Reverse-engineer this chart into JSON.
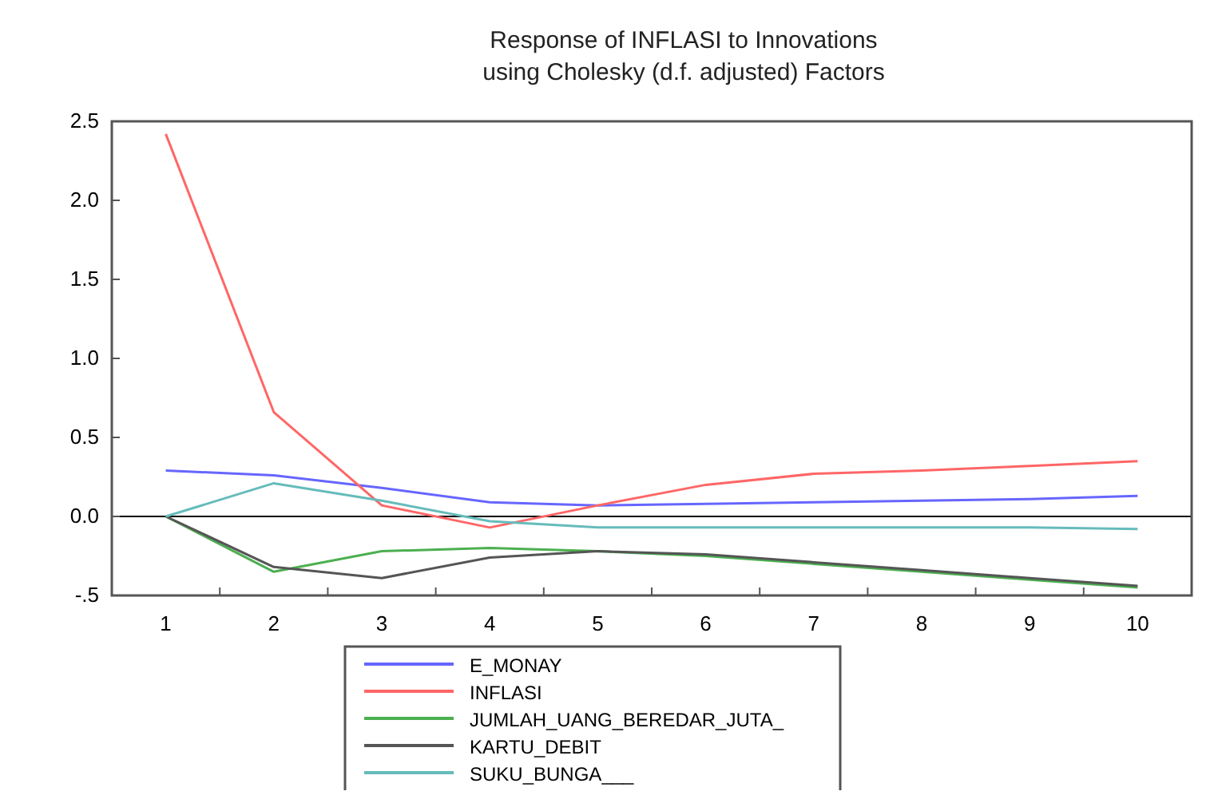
{
  "chart_data": {
    "type": "line",
    "title": "Response of INFLASI to Innovations\nusing Cholesky (d.f. adjusted) Factors",
    "categories": [
      "1",
      "2",
      "3",
      "4",
      "5",
      "6",
      "7",
      "8",
      "9",
      "10"
    ],
    "series": [
      {
        "name": "E_MONAY",
        "color": "#6666ff",
        "values": [
          0.29,
          0.26,
          0.18,
          0.09,
          0.07,
          0.08,
          0.09,
          0.1,
          0.11,
          0.13
        ]
      },
      {
        "name": "INFLASI",
        "color": "#ff6666",
        "values": [
          2.42,
          0.66,
          0.07,
          -0.07,
          0.07,
          0.2,
          0.27,
          0.29,
          0.32,
          0.35
        ]
      },
      {
        "name": "JUMLAH_UANG_BEREDAR_JUTA_",
        "color": "#4caf50",
        "values": [
          0,
          -0.35,
          -0.22,
          -0.2,
          -0.22,
          -0.25,
          -0.3,
          -0.35,
          -0.4,
          -0.45
        ]
      },
      {
        "name": "KARTU_DEBIT",
        "color": "#555555",
        "values": [
          0,
          -0.32,
          -0.39,
          -0.26,
          -0.22,
          -0.24,
          -0.29,
          -0.34,
          -0.39,
          -0.44
        ]
      },
      {
        "name": "SUKU_BUNGA___",
        "color": "#66bbbb",
        "values": [
          0,
          0.21,
          0.1,
          -0.03,
          -0.07,
          -0.07,
          -0.07,
          -0.07,
          -0.07,
          -0.08
        ]
      }
    ],
    "ylim": [
      -0.5,
      2.5
    ],
    "yticks": [
      {
        "value": -0.5,
        "label": "-.5"
      },
      {
        "value": 0,
        "label": "0.0"
      },
      {
        "value": 0.5,
        "label": "0.5"
      },
      {
        "value": 1,
        "label": "1.0"
      },
      {
        "value": 1.5,
        "label": "1.5"
      },
      {
        "value": 2,
        "label": "2.0"
      },
      {
        "value": 2.5,
        "label": "2.5"
      }
    ],
    "ref_lines": [
      {
        "axis": "y",
        "value": 0,
        "color": "#000000"
      }
    ],
    "grid": false,
    "legend": "bottom"
  }
}
